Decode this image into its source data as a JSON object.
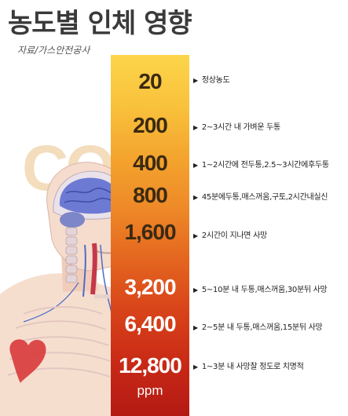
{
  "title": "농도별 인체 영향",
  "source": "자료/가스안전공사",
  "watermark": "CO",
  "unit": "ppm",
  "colors": {
    "bar_top": "#fcd54a",
    "bar_mid": "#ee8a28",
    "bar_bottom": "#b41a14",
    "dark_label": "#3b2a12",
    "light_label": "#ffffff"
  },
  "levels": [
    {
      "value": "20",
      "effect": "정상농도"
    },
    {
      "value": "200",
      "effect": "2~3시간 내 가벼운 두통"
    },
    {
      "value": "400",
      "effect": "1~2시간에 전두통,2.5~3시간에후두통"
    },
    {
      "value": "800",
      "effect": "45분에두통,매스꺼움,구토,2시간내실신"
    },
    {
      "value": "1,600",
      "effect": "2시간이 지나면 사망"
    },
    {
      "value": "3,200",
      "effect": "5~10분 내 두통,매스꺼움,30분뒤 사망"
    },
    {
      "value": "6,400",
      "effect": "2~5분 내 두통,매스꺼움,15분뒤 사망"
    },
    {
      "value": "12,800",
      "effect": "1~3분 내 사망찰 정도로 치명적"
    }
  ]
}
